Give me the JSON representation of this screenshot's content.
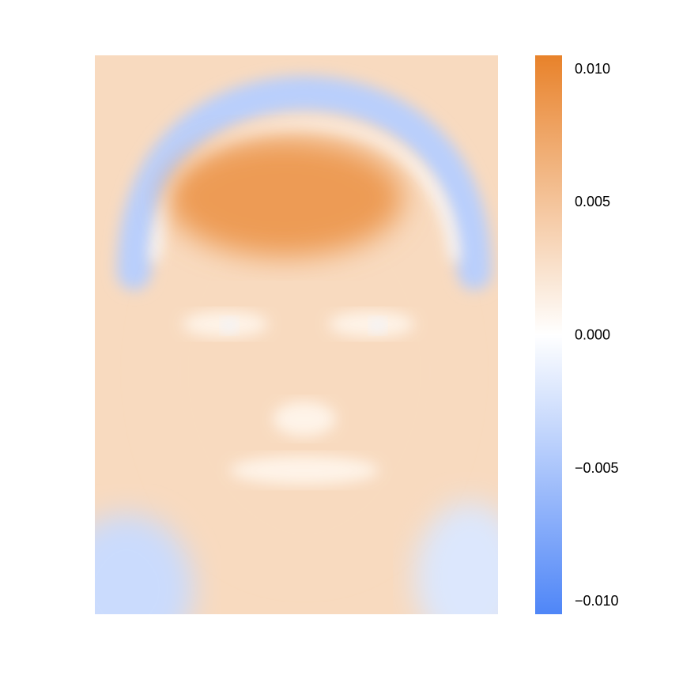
{
  "chart_data": {
    "type": "heatmap",
    "title": "",
    "xlabel": "",
    "ylabel": "",
    "axes_visible": false,
    "image_content": "face-shaped signed heatmap (warm positive on face and outer region, cool negative band over the head and lower corners)",
    "colorbar": {
      "position": "right",
      "min": -0.01,
      "max": 0.01,
      "ticks": [
        0.01,
        0.005,
        0.0,
        -0.005,
        -0.01
      ],
      "tick_labels": [
        "0.010",
        "0.005",
        "0.000",
        "−0.005",
        "−0.010"
      ],
      "colors": {
        "low": "#4f86f7",
        "mid": "#ffffff",
        "high": "#e8822a"
      }
    },
    "regions": [
      {
        "name": "forehead",
        "value": 0.008
      },
      {
        "name": "face",
        "value": 0.003
      },
      {
        "name": "outer-background",
        "value": 0.003
      },
      {
        "name": "hair-arc-band",
        "value": -0.004
      },
      {
        "name": "eye-corners",
        "value": -0.001
      },
      {
        "name": "lower-left-corner",
        "value": -0.003
      },
      {
        "name": "lower-right-corner",
        "value": -0.002
      }
    ]
  }
}
